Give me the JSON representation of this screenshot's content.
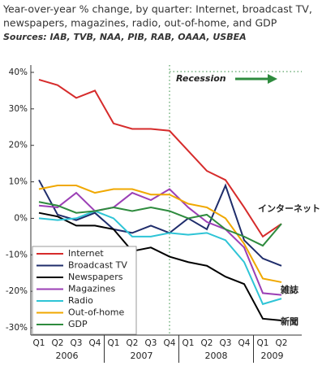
{
  "chart_data": {
    "type": "line",
    "title_lines": [
      "Year-over-year % change, by quarter: Internet, broadcast TV,",
      "newspapers, magazines, radio, out-of-home, and GDP"
    ],
    "sources": "Sources: IAB, TVB, NAA, PIB, RAB, OAAA, USBEA",
    "categories": [
      "Q1",
      "Q2",
      "Q3",
      "Q4",
      "Q1",
      "Q2",
      "Q3",
      "Q4",
      "Q1",
      "Q2",
      "Q3",
      "Q4",
      "Q1",
      "Q2"
    ],
    "years": [
      "2006",
      "2007",
      "2008",
      "2009"
    ],
    "ylim": [
      -32,
      42
    ],
    "yticks": [
      {
        "value": 40,
        "label": "40%"
      },
      {
        "value": 30,
        "label": "30%"
      },
      {
        "value": 20,
        "label": "20%"
      },
      {
        "value": 10,
        "label": "10%"
      },
      {
        "value": 0,
        "label": "0%"
      },
      {
        "value": -10,
        "label": "-10%"
      },
      {
        "value": -20,
        "label": "-20%"
      },
      {
        "value": -30,
        "label": "-30%"
      }
    ],
    "recession": "Recession",
    "annotations": [
      "インターネット",
      "雑誌",
      "新聞"
    ],
    "series": [
      {
        "name": "Internet",
        "color": "#d62b2b",
        "values": [
          38,
          36.5,
          33,
          35,
          26,
          24.5,
          24.5,
          24,
          18.5,
          13,
          10.5,
          3,
          -5,
          -1.5
        ]
      },
      {
        "name": "Broadcast TV",
        "color": "#1f2d6b",
        "values": [
          10.5,
          1,
          -0.5,
          1.5,
          -3,
          -4,
          -2,
          -4,
          0,
          -3,
          9,
          -6,
          -11,
          -13
        ]
      },
      {
        "name": "Newspapers",
        "color": "#000000",
        "values": [
          1.5,
          0.5,
          -2,
          -2,
          -3,
          -9,
          -8,
          -10.5,
          -12,
          -13,
          -16,
          -18,
          -27.5,
          -28
        ]
      },
      {
        "name": "Magazines",
        "color": "#9b3fb5",
        "values": [
          3.5,
          3,
          7,
          2,
          3,
          7,
          5,
          8,
          3,
          -1,
          -3,
          -8,
          -20.5,
          -21
        ]
      },
      {
        "name": "Radio",
        "color": "#2ec4d6",
        "values": [
          0,
          -0.5,
          0,
          2,
          0,
          -5,
          -5,
          -4,
          -4.5,
          -4,
          -6,
          -12,
          -23.5,
          -22
        ]
      },
      {
        "name": "Out-of-home",
        "color": "#f0a800",
        "values": [
          8,
          9,
          9,
          7,
          8,
          8,
          6.5,
          6.5,
          4,
          3,
          0,
          -7,
          -16.5,
          -17.5
        ]
      },
      {
        "name": "GDP",
        "color": "#2e8b3e",
        "values": [
          4.5,
          3.5,
          1.5,
          2,
          3,
          2,
          3,
          2,
          0,
          1,
          -3,
          -5,
          -7.5,
          -1.5
        ]
      }
    ]
  }
}
